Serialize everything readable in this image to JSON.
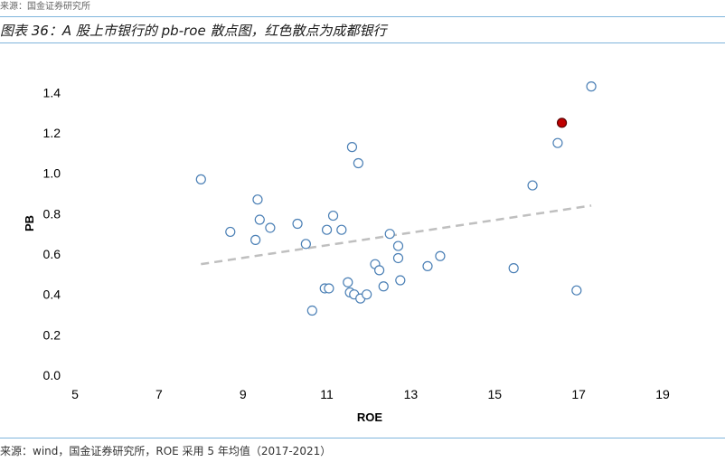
{
  "header": {
    "top_note": "来源：国金证券研究所",
    "title": "图表 36：A 股上市银行的 pb-roe 散点图，红色散点为成都银行"
  },
  "footer": {
    "source": "来源：wind，国金证券研究所，ROE 采用 5 年均值（2017-2021）"
  },
  "colors": {
    "point_stroke": "#4a7fb5",
    "highlight_fill": "#c00000",
    "trendline": "#bfbfbf",
    "rule": "#7fb5dc"
  },
  "chart_data": {
    "type": "scatter",
    "title": "",
    "xlabel": "ROE",
    "ylabel": "PB",
    "xlim": [
      5,
      19
    ],
    "ylim": [
      0,
      1.5
    ],
    "x_ticks": [
      "5",
      "7",
      "9",
      "11",
      "13",
      "15",
      "17",
      "19"
    ],
    "y_ticks": [
      "0.0",
      "0.2",
      "0.4",
      "0.6",
      "0.8",
      "1.0",
      "1.2",
      "1.4"
    ],
    "grid": false,
    "legend": "none",
    "trendline": {
      "style": "dashed",
      "from": [
        8.0,
        0.55
      ],
      "to": [
        17.3,
        0.84
      ]
    },
    "points": [
      {
        "x": 8.0,
        "y": 0.97
      },
      {
        "x": 8.7,
        "y": 0.71
      },
      {
        "x": 9.3,
        "y": 0.67
      },
      {
        "x": 9.35,
        "y": 0.87
      },
      {
        "x": 9.4,
        "y": 0.77
      },
      {
        "x": 9.65,
        "y": 0.73
      },
      {
        "x": 10.3,
        "y": 0.75
      },
      {
        "x": 10.5,
        "y": 0.65
      },
      {
        "x": 10.65,
        "y": 0.32
      },
      {
        "x": 10.95,
        "y": 0.43
      },
      {
        "x": 11.0,
        "y": 0.72
      },
      {
        "x": 11.05,
        "y": 0.43
      },
      {
        "x": 11.15,
        "y": 0.79
      },
      {
        "x": 11.35,
        "y": 0.72
      },
      {
        "x": 11.5,
        "y": 0.46
      },
      {
        "x": 11.55,
        "y": 0.41
      },
      {
        "x": 11.6,
        "y": 1.13
      },
      {
        "x": 11.65,
        "y": 0.4
      },
      {
        "x": 11.75,
        "y": 1.05
      },
      {
        "x": 11.8,
        "y": 0.38
      },
      {
        "x": 11.95,
        "y": 0.4
      },
      {
        "x": 12.15,
        "y": 0.55
      },
      {
        "x": 12.25,
        "y": 0.52
      },
      {
        "x": 12.35,
        "y": 0.44
      },
      {
        "x": 12.5,
        "y": 0.7
      },
      {
        "x": 12.7,
        "y": 0.64
      },
      {
        "x": 12.7,
        "y": 0.58
      },
      {
        "x": 12.75,
        "y": 0.47
      },
      {
        "x": 13.4,
        "y": 0.54
      },
      {
        "x": 13.7,
        "y": 0.59
      },
      {
        "x": 15.45,
        "y": 0.53
      },
      {
        "x": 15.9,
        "y": 0.94
      },
      {
        "x": 16.5,
        "y": 1.15
      },
      {
        "x": 16.6,
        "y": 1.25,
        "highlight": true
      },
      {
        "x": 16.95,
        "y": 0.42
      },
      {
        "x": 17.3,
        "y": 1.43
      }
    ]
  }
}
